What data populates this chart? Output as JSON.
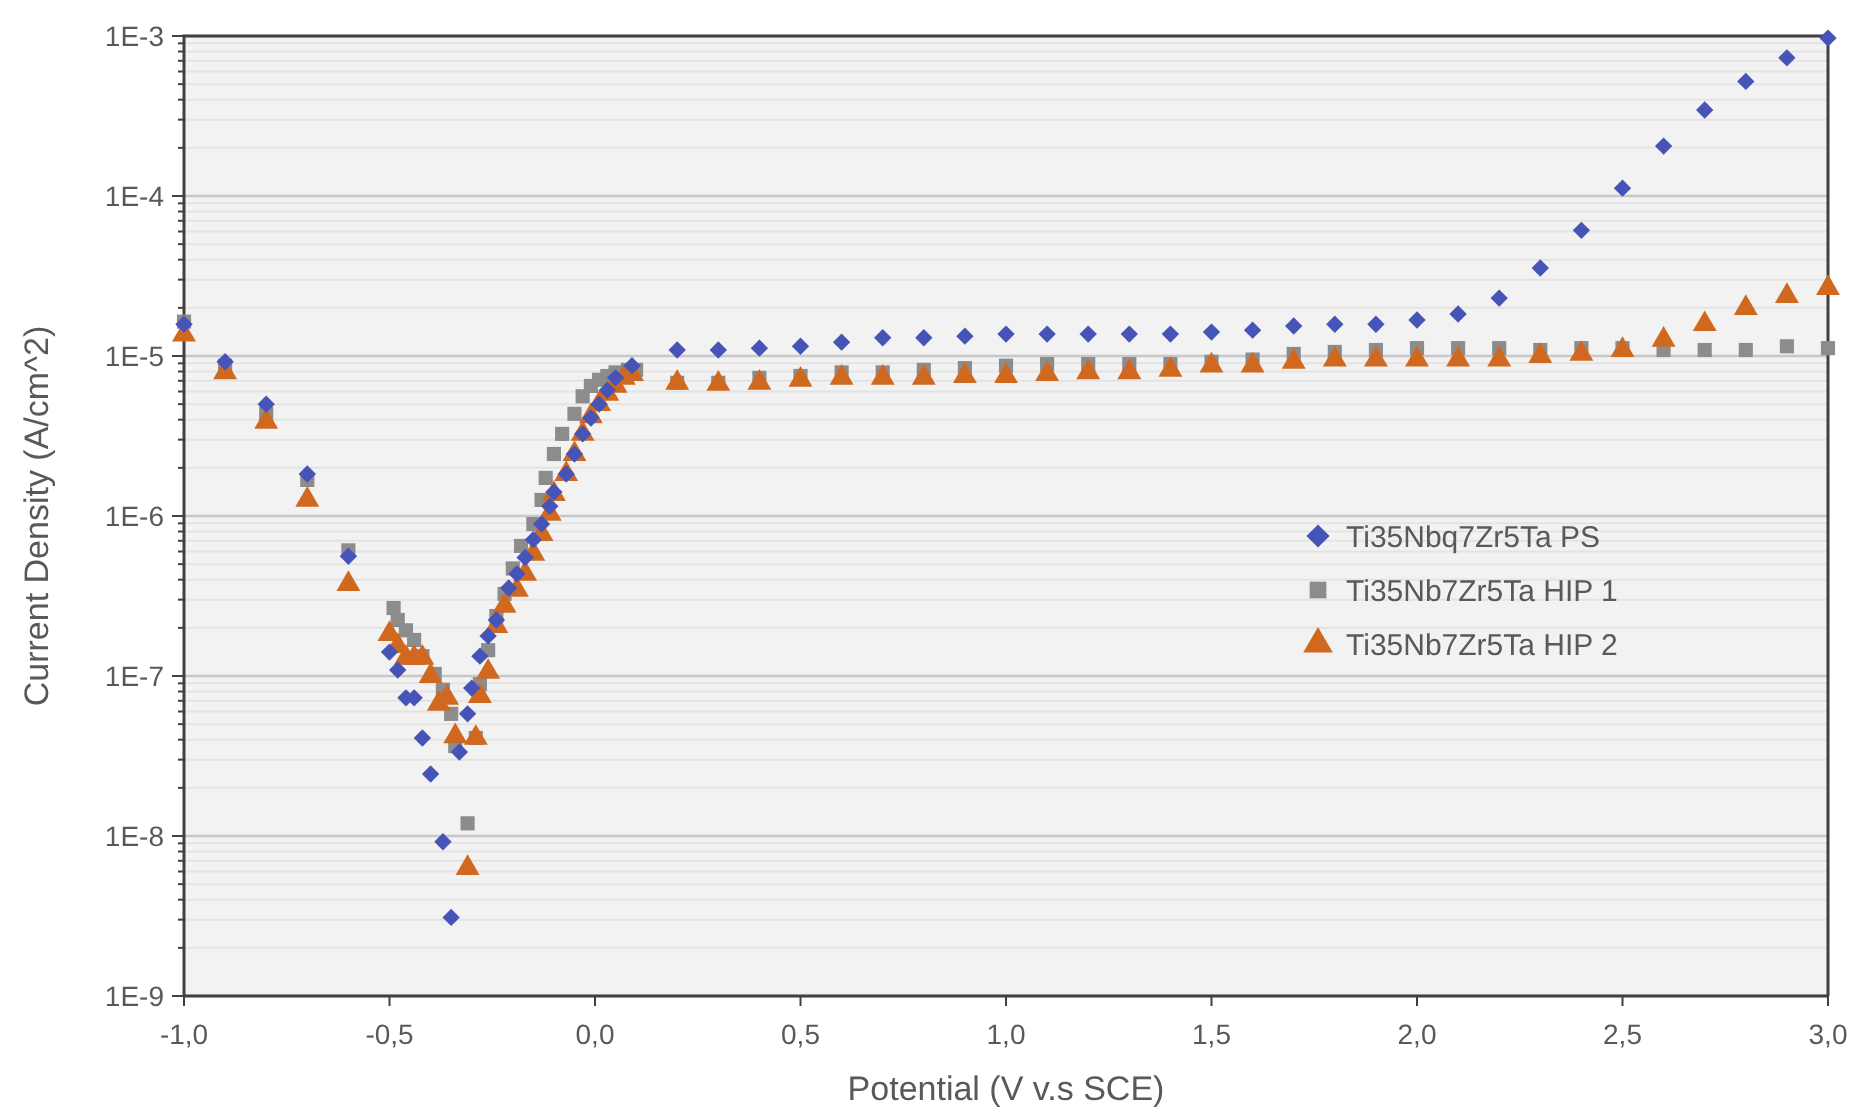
{
  "chart_data": {
    "type": "scatter",
    "xlabel": "Potential (V v.s SCE)",
    "ylabel": "Current Density (A/cm^2)",
    "log": "y",
    "grid": "y",
    "legend": "right",
    "xlim": [
      -1,
      3
    ],
    "xticks": [
      {
        "value": -1,
        "label": "-1,0"
      },
      {
        "value": -0.5,
        "label": "-0,5"
      },
      {
        "value": 0,
        "label": "0,0"
      },
      {
        "value": 0.5,
        "label": "0,5"
      },
      {
        "value": 1,
        "label": "1,0"
      },
      {
        "value": 1.5,
        "label": "1,5"
      },
      {
        "value": 2,
        "label": "2,0"
      },
      {
        "value": 2.5,
        "label": "2,5"
      },
      {
        "value": 3,
        "label": "3,0"
      }
    ],
    "ylim": [
      1e-09,
      0.001
    ],
    "yticks": [
      {
        "value": 1e-09,
        "label": "1E-9"
      },
      {
        "value": 1e-08,
        "label": "1E-8"
      },
      {
        "value": 1e-07,
        "label": "1E-7"
      },
      {
        "value": 1e-06,
        "label": "1E-6"
      },
      {
        "value": 1e-05,
        "label": "1E-5"
      },
      {
        "value": 0.0001,
        "label": "1E-4"
      },
      {
        "value": 0.001,
        "label": "1E-3"
      }
    ],
    "series": [
      {
        "name": "Ti35Nbq7Zr5Ta PS",
        "color": "#4654b8",
        "marker": "diamond",
        "x": [
          -1,
          -0.9,
          -0.8,
          -0.7,
          -0.6,
          -0.5,
          -0.48,
          -0.46,
          -0.44,
          -0.42,
          -0.4,
          -0.37,
          -0.35,
          -0.33,
          -0.31,
          -0.3,
          -0.28,
          -0.26,
          -0.24,
          -0.21,
          -0.19,
          -0.17,
          -0.15,
          -0.13,
          -0.11,
          -0.1,
          -0.07,
          -0.05,
          -0.03,
          -0.01,
          0.01,
          0.03,
          0.05,
          0.09,
          0.2,
          0.3,
          0.4,
          0.5,
          0.6,
          0.7,
          0.8,
          0.9,
          1,
          1.1,
          1.2,
          1.3,
          1.4,
          1.5,
          1.6,
          1.7,
          1.8,
          1.9,
          2,
          2.1,
          2.2,
          2.3,
          2.4,
          2.5,
          2.6,
          2.7,
          2.8,
          2.9,
          3
        ],
        "values": [
          1.58e-05,
          9.2e-06,
          5e-06,
          1.83e-06,
          5.6e-07,
          1.41e-07,
          1.09e-07,
          7.3e-08,
          7.3e-08,
          4.1e-08,
          2.44e-08,
          9.2e-09,
          3.1e-09,
          3.35e-08,
          5.8e-08,
          8.4e-08,
          1.33e-07,
          1.78e-07,
          2.24e-07,
          3.55e-07,
          4.35e-07,
          5.5e-07,
          7.1e-07,
          8.9e-07,
          1.15e-06,
          1.41e-06,
          1.83e-06,
          2.44e-06,
          3.26e-06,
          4.1e-06,
          5e-06,
          6.1e-06,
          7.3e-06,
          8.7e-06,
          1.09e-05,
          1.09e-05,
          1.12e-05,
          1.15e-05,
          1.22e-05,
          1.3e-05,
          1.3e-05,
          1.33e-05,
          1.37e-05,
          1.37e-05,
          1.37e-05,
          1.37e-05,
          1.37e-05,
          1.41e-05,
          1.45e-05,
          1.54e-05,
          1.58e-05,
          1.58e-05,
          1.68e-05,
          1.83e-05,
          2.3e-05,
          3.55e-05,
          6.1e-05,
          0.000112,
          0.000205,
          0.000345,
          0.00052,
          0.00073,
          0.00097
        ]
      },
      {
        "name": "Ti35Nb7Zr5Ta HIP 1",
        "color": "#8c8c8c",
        "marker": "square",
        "x": [
          -1,
          -0.9,
          -0.8,
          -0.7,
          -0.6,
          -0.49,
          -0.48,
          -0.46,
          -0.44,
          -0.42,
          -0.39,
          -0.37,
          -0.35,
          -0.34,
          -0.31,
          -0.29,
          -0.28,
          -0.26,
          -0.24,
          -0.22,
          -0.2,
          -0.18,
          -0.15,
          -0.13,
          -0.12,
          -0.1,
          -0.08,
          -0.05,
          -0.03,
          -0.01,
          0.01,
          0.03,
          0.05,
          0.08,
          0.1,
          0.2,
          0.3,
          0.4,
          0.5,
          0.6,
          0.7,
          0.8,
          0.9,
          1,
          1.1,
          1.2,
          1.3,
          1.4,
          1.5,
          1.6,
          1.7,
          1.8,
          1.9,
          2,
          2.1,
          2.2,
          2.3,
          2.4,
          2.5,
          2.6,
          2.7,
          2.8,
          2.9,
          3
        ],
        "values": [
          1.64e-05,
          8.7e-06,
          4.35e-06,
          1.68e-06,
          6.1e-07,
          2.66e-07,
          2.24e-07,
          1.93e-07,
          1.68e-07,
          1.33e-07,
          1.03e-07,
          8.2e-08,
          5.8e-08,
          3.65e-08,
          1.2e-08,
          4.1e-08,
          8.9e-08,
          1.45e-07,
          2.37e-07,
          3.26e-07,
          4.7e-07,
          6.5e-07,
          8.9e-07,
          1.26e-06,
          1.73e-06,
          2.44e-06,
          3.26e-06,
          4.35e-06,
          5.6e-06,
          6.5e-06,
          7.1e-06,
          7.5e-06,
          7.9e-06,
          8.2e-06,
          8.2e-06,
          6.8e-06,
          6.8e-06,
          7.3e-06,
          7.5e-06,
          7.9e-06,
          7.9e-06,
          8.2e-06,
          8.4e-06,
          8.7e-06,
          8.9e-06,
          8.9e-06,
          8.9e-06,
          8.9e-06,
          9.2e-06,
          9.5e-06,
          1.03e-05,
          1.06e-05,
          1.09e-05,
          1.12e-05,
          1.12e-05,
          1.12e-05,
          1.09e-05,
          1.12e-05,
          1.12e-05,
          1.09e-05,
          1.09e-05,
          1.09e-05,
          1.15e-05,
          1.12e-05
        ]
      },
      {
        "name": "Ti35Nb7Zr5Ta HIP 2",
        "color": "#d0691f",
        "marker": "triangle",
        "x": [
          -1,
          -0.9,
          -0.8,
          -0.7,
          -0.6,
          -0.5,
          -0.48,
          -0.46,
          -0.44,
          -0.42,
          -0.4,
          -0.38,
          -0.36,
          -0.34,
          -0.31,
          -0.29,
          -0.28,
          -0.26,
          -0.24,
          -0.22,
          -0.19,
          -0.17,
          -0.15,
          -0.13,
          -0.11,
          -0.1,
          -0.07,
          -0.05,
          -0.03,
          -0.01,
          0.01,
          0.03,
          0.05,
          0.07,
          0.09,
          0.2,
          0.3,
          0.4,
          0.5,
          0.6,
          0.7,
          0.8,
          0.9,
          1,
          1.1,
          1.2,
          1.3,
          1.4,
          1.5,
          1.6,
          1.7,
          1.8,
          1.9,
          2,
          2.1,
          2.2,
          2.3,
          2.4,
          2.5,
          2.6,
          2.7,
          2.8,
          2.9,
          3
        ],
        "values": [
          1.36e-05,
          7.9e-06,
          3.87e-06,
          1.26e-06,
          3.76e-07,
          1.83e-07,
          1.54e-07,
          1.3e-07,
          1.3e-07,
          1.3e-07,
          1e-07,
          6.7e-08,
          7.3e-08,
          4.2e-08,
          6.3e-09,
          4.1e-08,
          7.5e-08,
          1.06e-07,
          2.05e-07,
          2.74e-07,
          3.45e-07,
          4.35e-07,
          5.8e-07,
          7.7e-07,
          1.03e-06,
          1.37e-06,
          1.83e-06,
          2.44e-06,
          3.26e-06,
          4.2e-06,
          5e-06,
          5.8e-06,
          6.5e-06,
          7.3e-06,
          7.7e-06,
          6.8e-06,
          6.7e-06,
          6.8e-06,
          7.1e-06,
          7.3e-06,
          7.3e-06,
          7.3e-06,
          7.5e-06,
          7.5e-06,
          7.7e-06,
          7.9e-06,
          7.9e-06,
          8.2e-06,
          8.7e-06,
          8.7e-06,
          9.2e-06,
          9.5e-06,
          9.5e-06,
          9.5e-06,
          9.5e-06,
          9.5e-06,
          1e-05,
          1.03e-05,
          1.09e-05,
          1.26e-05,
          1.58e-05,
          1.99e-05,
          2.37e-05,
          2.66e-05
        ]
      }
    ]
  }
}
